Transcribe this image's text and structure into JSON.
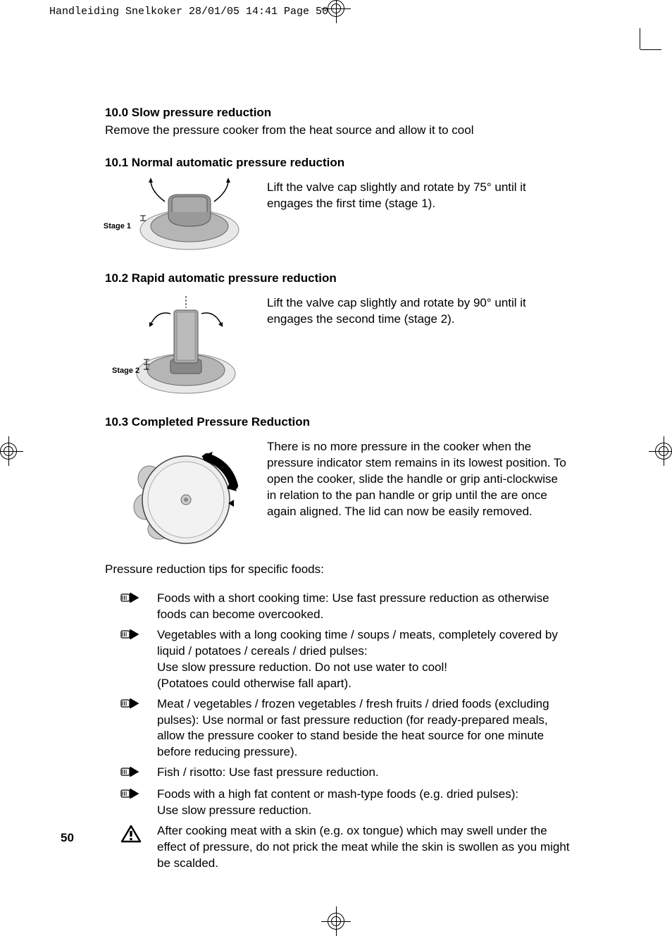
{
  "header": "Handleiding Snelkoker  28/01/05  14:41  Page 50",
  "sections": {
    "s100": {
      "heading": "10.0 Slow pressure reduction",
      "text": "Remove the pressure cooker from the heat source and allow it to cool"
    },
    "s101": {
      "heading": "10.1 Normal automatic pressure reduction",
      "stage_label": "Stage 1",
      "text": "Lift the valve cap slightly and rotate by 75° until it engages the first time (stage 1)."
    },
    "s102": {
      "heading": "10.2 Rapid automatic pressure reduction",
      "stage_label": "Stage 2",
      "text": "Lift the valve cap slightly and rotate by 90° until it engages the second time (stage 2)."
    },
    "s103": {
      "heading": "10.3 Completed Pressure Reduction",
      "text": "There is no more pressure in the cooker when the pressure indicator stem remains in its lowest position. To open the cooker, slide the handle or grip anti-clockwise in relation to the pan handle or grip until the are once again aligned. The lid can now be easily removed."
    }
  },
  "tips_intro": "Pressure reduction tips for specific foods:",
  "tips": [
    {
      "icon": "hand",
      "text": "Foods with a short cooking time: Use fast pressure reduction as otherwise foods can become overcooked."
    },
    {
      "icon": "hand",
      "text": "Vegetables with a long cooking time / soups / meats, completely covered by liquid / potatoes / cereals / dried pulses:\nUse slow pressure reduction. Do not use water to cool!\n(Potatoes could otherwise fall apart)."
    },
    {
      "icon": "hand",
      "text": "Meat / vegetables / frozen vegetables / fresh fruits / dried foods (excluding pulses): Use normal or fast pressure reduction (for ready-prepared meals, allow the pressure cooker to stand beside the heat source for one minute before reducing pressure)."
    },
    {
      "icon": "hand",
      "text": "Fish / risotto: Use fast pressure reduction."
    },
    {
      "icon": "hand",
      "text": "Foods with a high fat content or mash-type foods (e.g. dried pulses):\nUse slow pressure reduction."
    },
    {
      "icon": "warning",
      "text": "After cooking meat with a skin (e.g. ox tongue) which may swell under the effect of pressure, do not prick the meat while the skin is swollen as you might be scalded."
    }
  ],
  "page_number": "50",
  "colors": {
    "text": "#000000",
    "background": "#ffffff",
    "illustration_gray": "#b5b5b5",
    "illustration_dark": "#888888",
    "illustration_light": "#e8e8e8"
  }
}
